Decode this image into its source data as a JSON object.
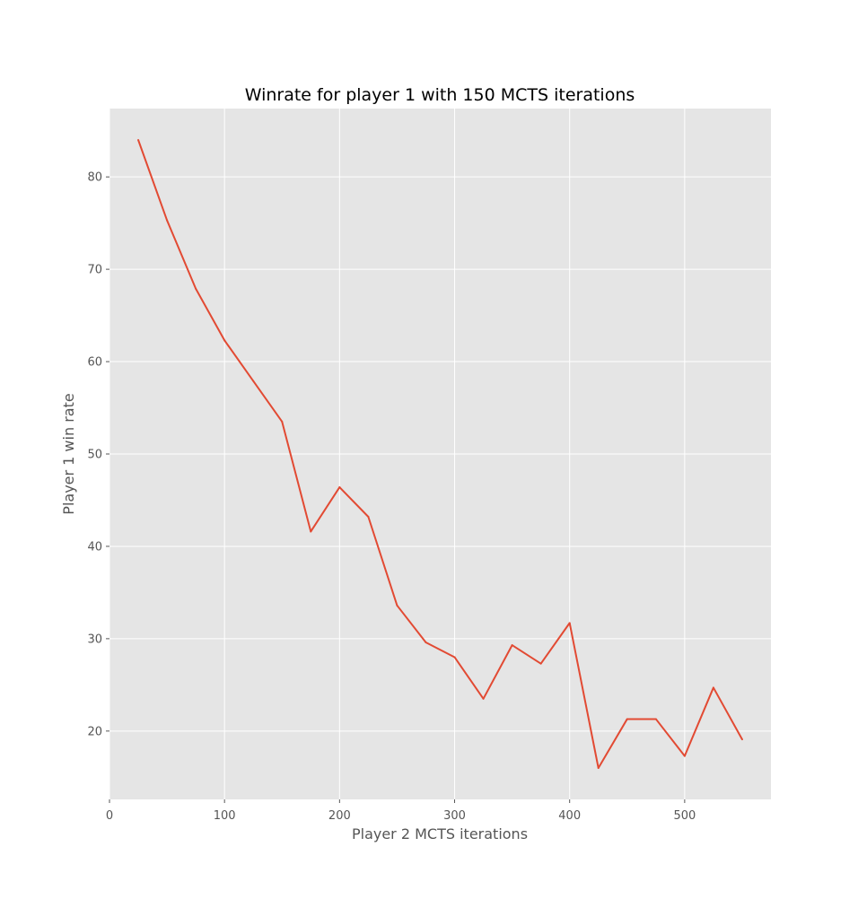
{
  "chart_data": {
    "type": "line",
    "title": "Winrate for player 1 with 150 MCTS iterations",
    "xlabel": "Player 2 MCTS iterations",
    "ylabel": "Player 1 win rate",
    "xlim": [
      0,
      575
    ],
    "ylim": [
      12.6,
      87.4
    ],
    "xticks": [
      0,
      100,
      200,
      300,
      400,
      500
    ],
    "yticks": [
      20,
      30,
      40,
      50,
      60,
      70,
      80
    ],
    "grid": true,
    "style": "ggplot",
    "colors": {
      "plot_background": "#E5E5E5",
      "grid": "#FFFFFF",
      "line": "#E24A33",
      "text": "#555555"
    },
    "series": [
      {
        "x": [
          25,
          50,
          75,
          100,
          125,
          150,
          175,
          200,
          225,
          250,
          275,
          300,
          325,
          350,
          375,
          400,
          425,
          450,
          475,
          500,
          525,
          550
        ],
        "values": [
          84.0,
          75.3,
          67.9,
          62.3,
          57.9,
          53.5,
          41.6,
          46.4,
          43.2,
          33.6,
          29.6,
          28.0,
          23.5,
          29.3,
          27.3,
          31.7,
          16.0,
          21.3,
          21.3,
          17.3,
          24.7,
          19.1
        ]
      }
    ]
  }
}
